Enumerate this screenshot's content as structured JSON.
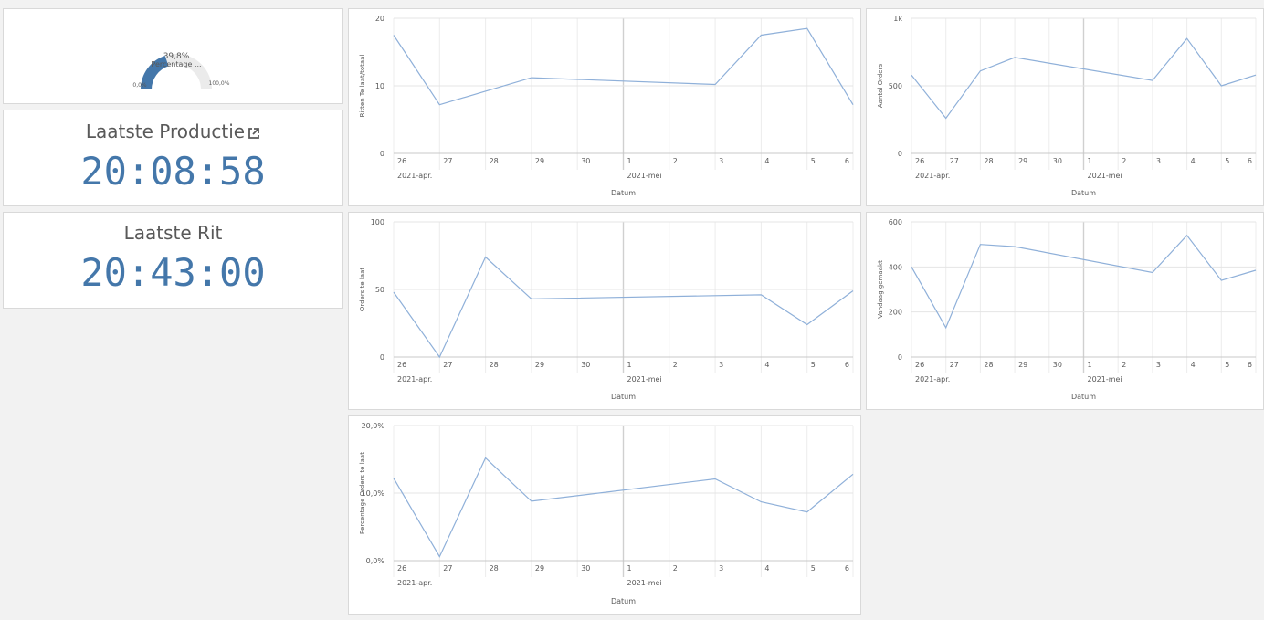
{
  "gauge": {
    "value_text": "39,8%",
    "label": "Percentage ...",
    "min_label": "0,0%",
    "max_label": "100,0%",
    "value": 0.398,
    "color": "#4477aa"
  },
  "kpi_production": {
    "title": "Laatste Productie",
    "value": "20:08:58"
  },
  "kpi_ride": {
    "title": "Laatste Rit",
    "value": "20:43:00"
  },
  "chart_data": [
    {
      "id": "chart1",
      "type": "line",
      "ylabel": "Ritten Te laat/totaal",
      "xlabel": "Datum",
      "ylim": [
        0,
        20
      ],
      "yticks": [
        "0",
        "10",
        "20"
      ],
      "ytick_values": [
        0,
        10,
        20
      ],
      "days": [
        "26",
        "27",
        "28",
        "29",
        "30",
        "1",
        "2",
        "3",
        "4",
        "5",
        "6"
      ],
      "months": [
        "2021-apr.",
        "2021-mei"
      ],
      "x": [
        "2021-04-26",
        "2021-04-27",
        "2021-04-29",
        "2021-05-03",
        "2021-05-04",
        "2021-05-05",
        "2021-05-06"
      ],
      "values": [
        17.5,
        7.2,
        11.2,
        10.2,
        17.5,
        18.5,
        7.2
      ],
      "color": "#8fb0d9"
    },
    {
      "id": "chart2",
      "type": "line",
      "ylabel": "Aantal Orders",
      "xlabel": "Datum",
      "ylim": [
        0,
        1000
      ],
      "yticks": [
        "0",
        "500",
        "1k"
      ],
      "ytick_values": [
        0,
        500,
        1000
      ],
      "days": [
        "26",
        "27",
        "28",
        "29",
        "30",
        "1",
        "2",
        "3",
        "4",
        "5",
        "6"
      ],
      "months": [
        "2021-apr.",
        "2021-mei"
      ],
      "x": [
        "2021-04-26",
        "2021-04-27",
        "2021-04-28",
        "2021-04-29",
        "2021-05-03",
        "2021-05-04",
        "2021-05-05",
        "2021-05-06"
      ],
      "values": [
        580,
        260,
        610,
        710,
        540,
        850,
        500,
        580
      ],
      "color": "#8fb0d9"
    },
    {
      "id": "chart3",
      "type": "line",
      "ylabel": "Orders te laat",
      "xlabel": "Datum",
      "ylim": [
        0,
        100
      ],
      "yticks": [
        "0",
        "50",
        "100"
      ],
      "ytick_values": [
        0,
        50,
        100
      ],
      "days": [
        "26",
        "27",
        "28",
        "29",
        "30",
        "1",
        "2",
        "3",
        "4",
        "5",
        "6"
      ],
      "months": [
        "2021-apr.",
        "2021-mei"
      ],
      "x": [
        "2021-04-26",
        "2021-04-27",
        "2021-04-28",
        "2021-04-29",
        "2021-05-04",
        "2021-05-05",
        "2021-05-06"
      ],
      "values": [
        48,
        0,
        74,
        43,
        46,
        24,
        49
      ],
      "color": "#8fb0d9"
    },
    {
      "id": "chart4",
      "type": "line",
      "ylabel": "Vandaag gemaakt",
      "xlabel": "Datum",
      "ylim": [
        0,
        600
      ],
      "yticks": [
        "0",
        "200",
        "400",
        "600"
      ],
      "ytick_values": [
        0,
        200,
        400,
        600
      ],
      "days": [
        "26",
        "27",
        "28",
        "29",
        "30",
        "1",
        "2",
        "3",
        "4",
        "5",
        "6"
      ],
      "months": [
        "2021-apr.",
        "2021-mei"
      ],
      "x": [
        "2021-04-26",
        "2021-04-27",
        "2021-04-28",
        "2021-04-29",
        "2021-05-03",
        "2021-05-04",
        "2021-05-05",
        "2021-05-06"
      ],
      "values": [
        400,
        130,
        500,
        490,
        375,
        540,
        340,
        385
      ],
      "color": "#8fb0d9"
    },
    {
      "id": "chart5",
      "type": "line",
      "ylabel": "Percentage Orders te laat",
      "xlabel": "Datum",
      "ylim": [
        0,
        20
      ],
      "yticks": [
        "0,0%",
        "10,0%",
        "20,0%"
      ],
      "ytick_values": [
        0,
        10,
        20
      ],
      "days": [
        "26",
        "27",
        "28",
        "29",
        "30",
        "1",
        "2",
        "3",
        "4",
        "5",
        "6"
      ],
      "months": [
        "2021-apr.",
        "2021-mei"
      ],
      "x": [
        "2021-04-26",
        "2021-04-27",
        "2021-04-28",
        "2021-04-29",
        "2021-05-03",
        "2021-05-04",
        "2021-05-05",
        "2021-05-06"
      ],
      "values": [
        12.2,
        0.6,
        15.2,
        8.8,
        12.1,
        8.7,
        7.2,
        12.8
      ],
      "color": "#8fb0d9"
    }
  ]
}
